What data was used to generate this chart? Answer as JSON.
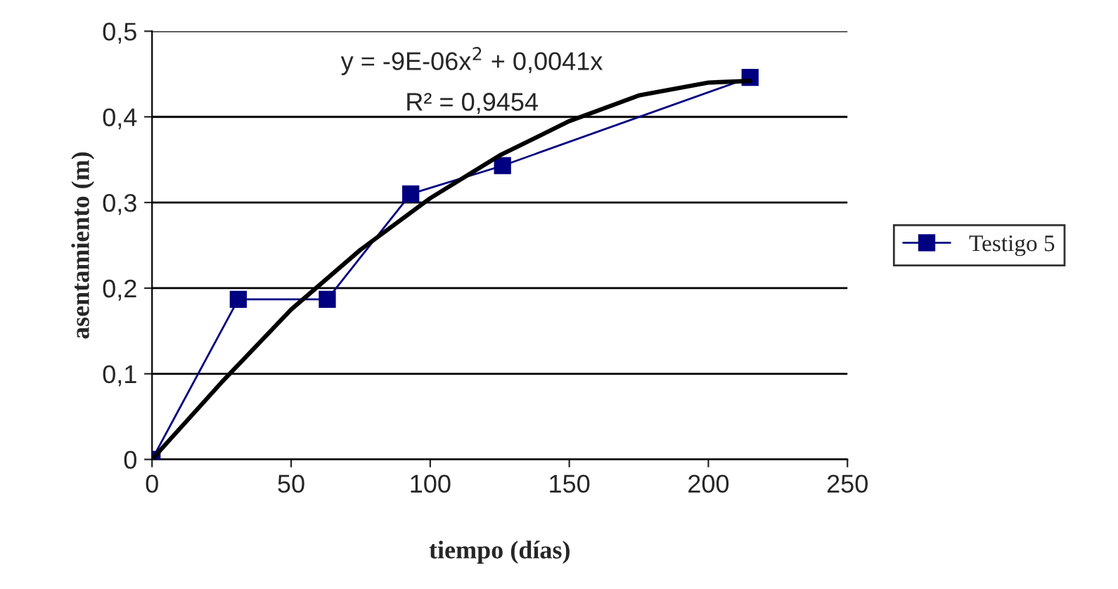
{
  "chart_data": {
    "type": "line",
    "xlabel": "tiempo (días)",
    "ylabel": "asentamiento (m)",
    "series": [
      {
        "name": "Testigo 5",
        "color": "#000080",
        "marker": "square",
        "x": [
          0,
          31,
          63,
          93,
          126,
          215
        ],
        "values": [
          0,
          0.187,
          0.187,
          0.31,
          0.343,
          0.446
        ]
      },
      {
        "color": "#000000",
        "marker": "none",
        "x": [
          0,
          25,
          50,
          75,
          100,
          125,
          150,
          175,
          200,
          215
        ],
        "values": [
          0,
          0.09,
          0.175,
          0.245,
          0.305,
          0.355,
          0.395,
          0.425,
          0.44,
          0.442
        ]
      }
    ],
    "annotations": [
      "y = -9E-06x$^{2}$ + 0,0041x",
      "R² = 0,9454"
    ],
    "xlim": [
      0,
      250
    ],
    "xticks": [
      0,
      50,
      100,
      150,
      200,
      250
    ],
    "ylim": [
      0,
      0.5
    ],
    "yticks": [
      0,
      {
        "value": 0.1,
        "label": "0,1"
      },
      {
        "value": 0.2,
        "label": "0,2"
      },
      {
        "value": 0.3,
        "label": "0,3"
      },
      {
        "value": 0.4,
        "label": "0,4"
      },
      {
        "value": 0.5,
        "label": "0,5"
      }
    ],
    "grid": "y",
    "legend": "right"
  }
}
